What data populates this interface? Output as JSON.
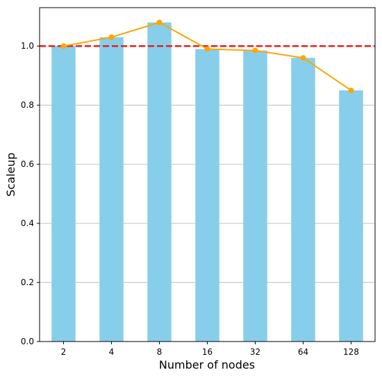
{
  "chart_data": {
    "type": "bar",
    "categories": [
      "2",
      "4",
      "8",
      "16",
      "32",
      "64",
      "128"
    ],
    "xlabel": "Number of nodes",
    "ylabel": "Scaleup",
    "ylim": [
      0,
      1.13
    ],
    "yticks": [
      "0.0",
      "0.2",
      "0.4",
      "0.6",
      "0.8",
      "1.0"
    ],
    "ytick_values": [
      0.0,
      0.2,
      0.4,
      0.6,
      0.8,
      1.0
    ],
    "grid": "horizontal",
    "series": [
      {
        "type": "bar",
        "values": [
          1.0,
          1.03,
          1.08,
          0.99,
          0.985,
          0.96,
          0.85
        ],
        "color": "#87ceeb"
      },
      {
        "type": "line",
        "values": [
          1.0,
          1.03,
          1.08,
          0.99,
          0.985,
          0.96,
          0.85
        ],
        "color": "#ffa500"
      }
    ],
    "reference_line": {
      "y": 1.0,
      "color": "#e0241b",
      "style": "dashed"
    }
  }
}
